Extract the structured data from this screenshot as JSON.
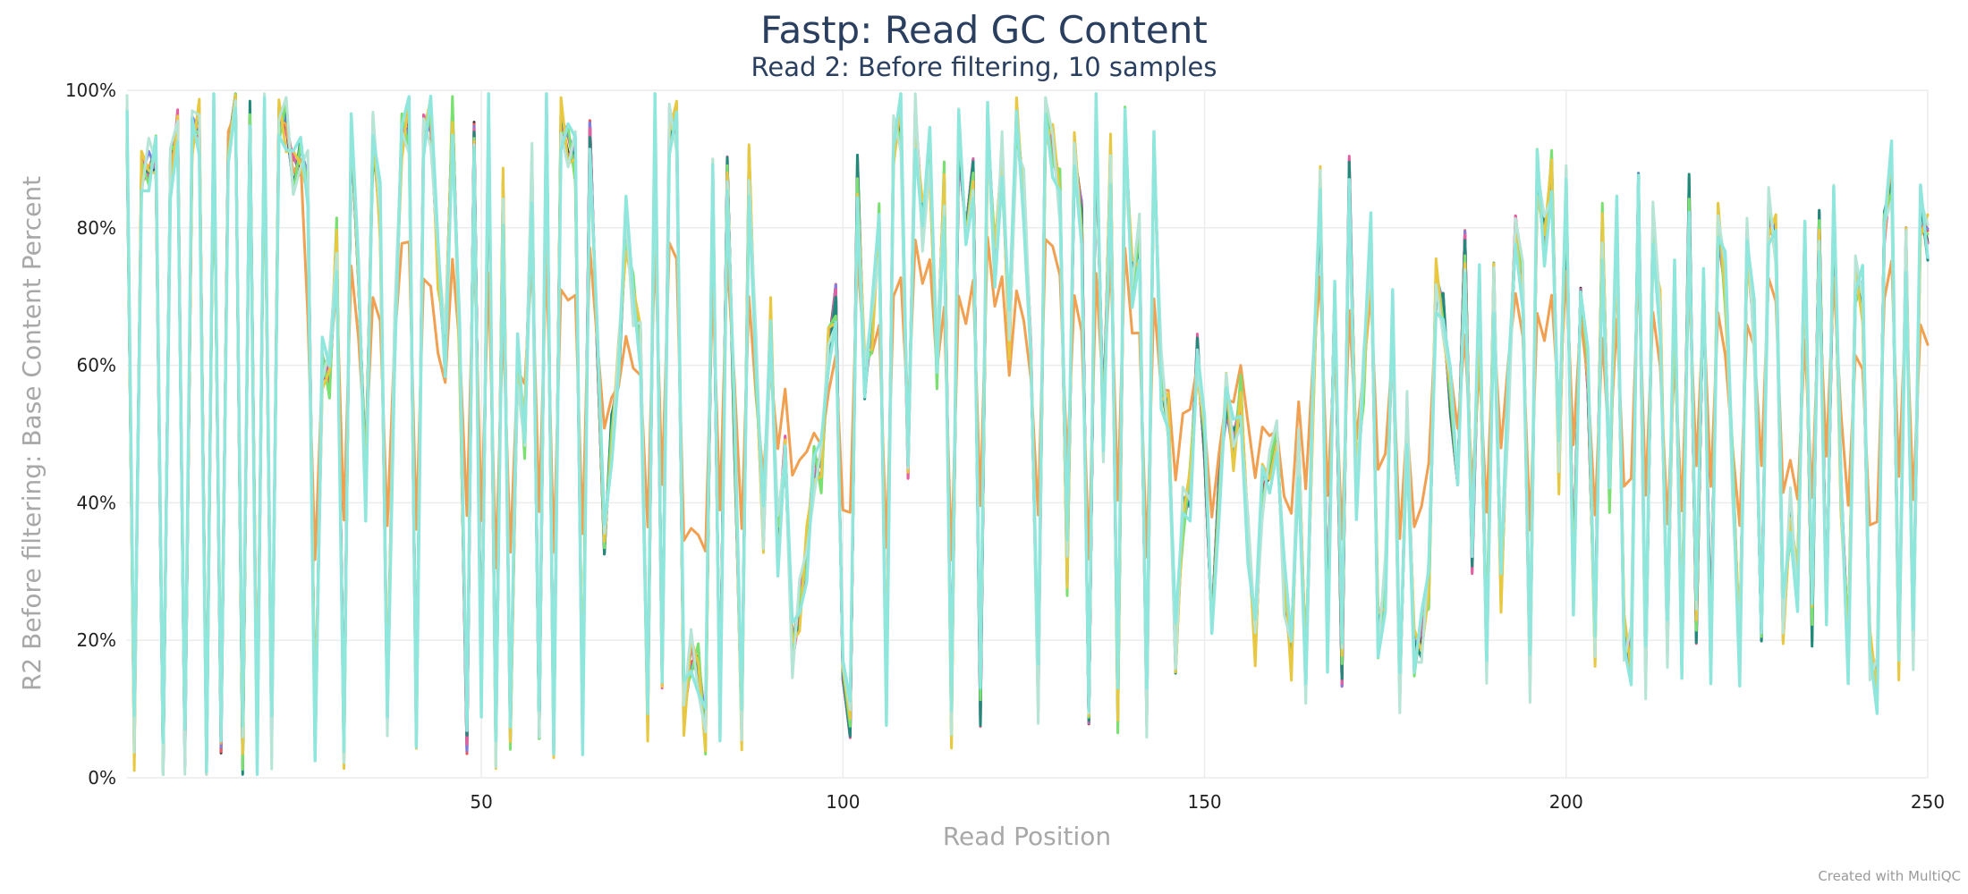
{
  "chart_data": {
    "type": "line",
    "title": "Fastp: Read GC Content",
    "subtitle": "Read 2: Before filtering, 10 samples",
    "xlabel": "Read Position",
    "ylabel": "R2 Before filtering: Base Content Percent",
    "xlim": [
      1,
      250
    ],
    "ylim": [
      0,
      100
    ],
    "x_ticks": [
      50,
      100,
      150,
      200,
      250
    ],
    "y_ticks": [
      0,
      20,
      40,
      60,
      80,
      100
    ],
    "y_tick_labels": [
      "0%",
      "20%",
      "40%",
      "60%",
      "80%",
      "100%"
    ],
    "grid": true,
    "legend": "none",
    "credit": "Created with MultiQC",
    "series_colors": [
      "#2f2f2f",
      "#e8585e",
      "#7b7fe6",
      "#e65fa0",
      "#1f8a7a",
      "#f0a050",
      "#7ae070",
      "#e8c840",
      "#b6e5d8",
      "#8ee6dc"
    ],
    "x": [
      1,
      2,
      3,
      4,
      5,
      6,
      7,
      8,
      9,
      10,
      11,
      12,
      13,
      14,
      15,
      16,
      17,
      18,
      19,
      20,
      21,
      22,
      23,
      24,
      25,
      26,
      27,
      28,
      29,
      30,
      31,
      32,
      33,
      34,
      35,
      36,
      37,
      38,
      39,
      40,
      41,
      42,
      43,
      44,
      45,
      46,
      47,
      48,
      49,
      50,
      51,
      52,
      53,
      54,
      55,
      56,
      57,
      58,
      59,
      60,
      61,
      62,
      63,
      64,
      65,
      66,
      67,
      68,
      69,
      70,
      71,
      72,
      73,
      74,
      75,
      76,
      77,
      78,
      79,
      80,
      81,
      82,
      83,
      84,
      85,
      86,
      87,
      88,
      89,
      90,
      91,
      92,
      93,
      94,
      95,
      96,
      97,
      98,
      99,
      100,
      101,
      102,
      103,
      104,
      105,
      106,
      107,
      108,
      109,
      110,
      111,
      112,
      113,
      114,
      115,
      116,
      117,
      118,
      119,
      120,
      121,
      122,
      123,
      124,
      125,
      126,
      127,
      128,
      129,
      130,
      131,
      132,
      133,
      134,
      135,
      136,
      137,
      138,
      139,
      140,
      141,
      142,
      143,
      144,
      145,
      146,
      147,
      148,
      149,
      150,
      151,
      152,
      153,
      154,
      155,
      156,
      157,
      158,
      159,
      160,
      161,
      162,
      163,
      164,
      165,
      166,
      167,
      168,
      169,
      170,
      171,
      172,
      173,
      174,
      175,
      176,
      177,
      178,
      179,
      180,
      181,
      182,
      183,
      184,
      185,
      186,
      187,
      188,
      189,
      190,
      191,
      192,
      193,
      194,
      195,
      196,
      197,
      198,
      199,
      200,
      201,
      202,
      203,
      204,
      205,
      206,
      207,
      208,
      209,
      210,
      211,
      212,
      213,
      214,
      215,
      216,
      217,
      218,
      219,
      220,
      221,
      222,
      223,
      224,
      225,
      226,
      227,
      228,
      229,
      230,
      231,
      232,
      233,
      234,
      235,
      236,
      237,
      238,
      239,
      240,
      241,
      242,
      243,
      244,
      245,
      246,
      247,
      248,
      249,
      250
    ],
    "base": [
      95,
      5,
      88,
      89,
      90,
      2,
      88,
      95,
      3,
      94,
      95,
      2,
      97,
      5,
      94,
      97,
      3,
      96,
      4,
      97,
      5,
      96,
      95,
      88,
      90,
      87,
      5,
      60,
      58,
      78,
      5,
      92,
      75,
      42,
      93,
      82,
      10,
      64,
      93,
      95,
      7,
      94,
      96,
      75,
      62,
      96,
      62,
      5,
      96,
      10,
      96,
      5,
      85,
      7,
      60,
      50,
      88,
      8,
      96,
      6,
      95,
      92,
      90,
      7,
      94,
      62,
      35,
      50,
      60,
      80,
      70,
      64,
      9,
      96,
      15,
      95,
      95,
      10,
      18,
      16,
      7,
      86,
      9,
      88,
      50,
      8,
      89,
      60,
      35,
      66,
      34,
      48,
      18,
      25,
      33,
      45,
      45,
      62,
      70,
      14,
      8,
      88,
      58,
      65,
      80,
      12,
      93,
      95,
      45,
      96,
      80,
      90,
      60,
      86,
      8,
      93,
      80,
      88,
      10,
      95,
      75,
      90,
      64,
      95,
      85,
      62,
      12,
      96,
      92,
      85,
      30,
      90,
      82,
      8,
      96,
      50,
      90,
      10,
      94,
      72,
      78,
      9,
      92,
      58,
      52,
      18,
      38,
      42,
      62,
      48,
      22,
      42,
      55,
      48,
      55,
      35,
      20,
      42,
      45,
      50,
      28,
      18,
      48,
      15,
      55,
      85,
      20,
      72,
      15,
      88,
      42,
      58,
      78,
      20,
      28,
      68,
      12,
      52,
      18,
      20,
      28,
      72,
      68,
      55,
      42,
      78,
      32,
      70,
      18,
      72,
      28,
      55,
      80,
      72,
      15,
      88,
      78,
      88,
      45,
      85,
      28,
      72,
      58,
      20,
      80,
      42,
      80,
      20,
      18,
      86,
      15,
      80,
      68,
      20,
      72,
      18,
      85,
      22,
      72,
      18,
      80,
      72,
      45,
      18,
      78,
      65,
      22,
      82,
      78,
      22,
      38,
      28,
      78,
      22,
      80,
      25,
      82,
      42,
      18,
      72,
      70,
      18,
      14,
      80,
      88,
      18,
      78,
      20,
      82,
      78
    ]
  }
}
